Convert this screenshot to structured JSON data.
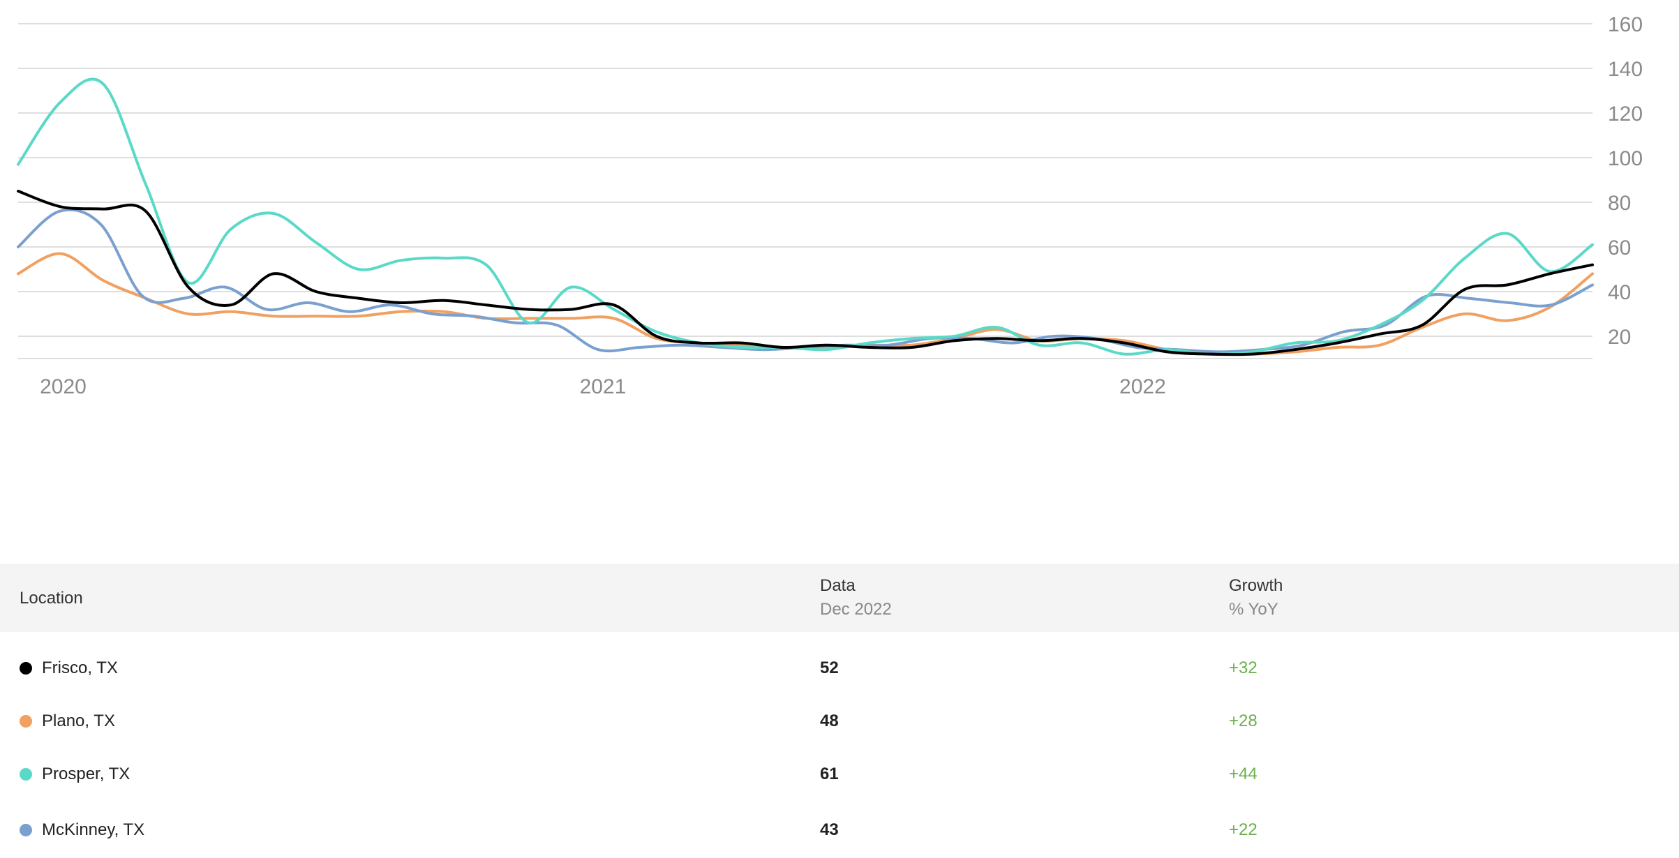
{
  "chart_data": {
    "type": "line",
    "ylim": [
      10,
      160
    ],
    "yticks": [
      20,
      40,
      60,
      80,
      100,
      120,
      140,
      160
    ],
    "xlim": [
      0,
      35
    ],
    "xticks": [
      {
        "x": 1,
        "label": "2020"
      },
      {
        "x": 13,
        "label": "2021"
      },
      {
        "x": 25,
        "label": "2022"
      }
    ],
    "y_axis_position": "right",
    "grid": true,
    "series": [
      {
        "name": "Frisco, TX",
        "color": "#000000",
        "values": [
          85,
          78,
          77,
          76,
          42,
          34,
          48,
          40,
          37,
          35,
          36,
          34,
          32,
          32,
          34,
          20,
          17,
          17,
          15,
          16,
          15,
          15,
          18,
          19,
          18,
          19,
          17,
          13,
          12,
          12,
          14,
          17,
          21,
          25,
          41,
          43,
          48,
          52
        ]
      },
      {
        "name": "Plano, TX",
        "color": "#f0a060",
        "values": [
          48,
          57,
          45,
          37,
          30,
          31,
          29,
          29,
          29,
          31,
          31,
          28,
          28,
          28,
          28,
          19,
          17,
          16,
          15,
          15,
          16,
          16,
          19,
          23,
          18,
          19,
          18,
          14,
          12,
          12,
          13,
          15,
          16,
          24,
          30,
          27,
          33,
          48
        ]
      },
      {
        "name": "Prosper, TX",
        "color": "#5ad9c8",
        "values": [
          97,
          125,
          133,
          88,
          44,
          68,
          75,
          62,
          50,
          54,
          55,
          52,
          26,
          42,
          32,
          22,
          17,
          15,
          15,
          14,
          17,
          19,
          20,
          24,
          16,
          17,
          12,
          14,
          12,
          13,
          17,
          18,
          25,
          36,
          55,
          66,
          49,
          61
        ]
      },
      {
        "name": "McKinney, TX",
        "color": "#7aa0d0",
        "values": [
          60,
          76,
          70,
          38,
          37,
          42,
          32,
          35,
          31,
          34,
          30,
          29,
          26,
          25,
          14,
          15,
          16,
          15,
          14,
          15,
          16,
          16,
          19,
          19,
          17,
          20,
          19,
          15,
          14,
          13,
          14,
          16,
          22,
          25,
          38,
          37,
          35,
          34,
          43
        ]
      }
    ]
  },
  "table": {
    "header": {
      "location": "Location",
      "data": "Data",
      "data_sub": "Dec 2022",
      "growth": "Growth",
      "growth_sub": "% YoY"
    },
    "rows": [
      {
        "location": "Frisco, TX",
        "color": "#000000",
        "value": "52",
        "growth": "+32"
      },
      {
        "location": "Plano, TX",
        "color": "#f0a060",
        "value": "48",
        "growth": "+28"
      },
      {
        "location": "Prosper, TX",
        "color": "#5ad9c8",
        "value": "61",
        "growth": "+44"
      },
      {
        "location": "McKinney, TX",
        "color": "#7aa0d0",
        "value": "43",
        "growth": "+22"
      }
    ]
  }
}
